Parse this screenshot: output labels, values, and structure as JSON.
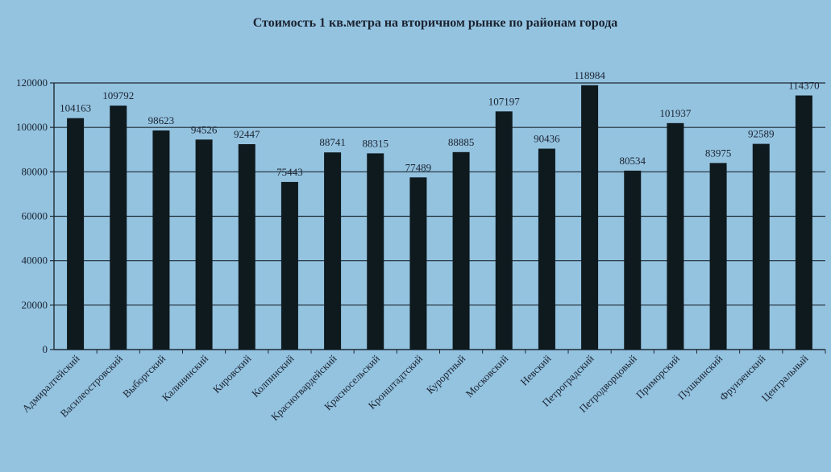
{
  "chart_data": {
    "type": "bar",
    "title": "Стоимость 1 кв.метра на вторичном рынке по районам города",
    "xlabel": "",
    "ylabel": "",
    "ylim": [
      0,
      120000
    ],
    "yticks": [
      "0",
      "20000",
      "40000",
      "60000",
      "80000",
      "100000",
      "120000"
    ],
    "grid": true,
    "categories": [
      "Адмиралтейский",
      "Василеостровский",
      "Выборгский",
      "Калининский",
      "Кировский",
      "Колпинский",
      "Красногвардейский",
      "Красносельский",
      "Кронштадтский",
      "Курортный",
      "Московский",
      "Невский",
      "Петроградский",
      "Петродворцовый",
      "Приморский",
      "Пушкинский",
      "Фрунзенский",
      "Центральный"
    ],
    "values": [
      104163,
      109792,
      98623,
      94526,
      92447,
      75443,
      88741,
      88315,
      77489,
      88885,
      107197,
      90436,
      118984,
      80534,
      101937,
      83975,
      92589,
      114370
    ],
    "colors": {
      "bar": "#0e1a1e",
      "grid": "#1e2a34",
      "text": "#1a2330",
      "background": "#94c3e0"
    }
  }
}
